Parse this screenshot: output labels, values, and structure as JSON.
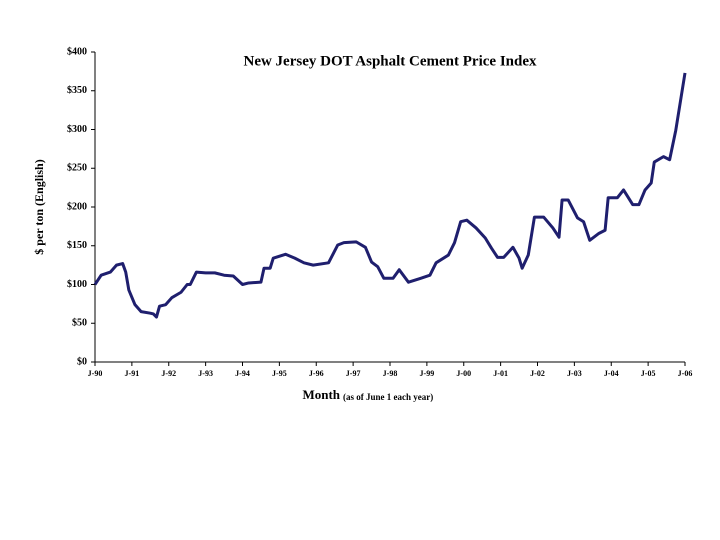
{
  "chart_data": {
    "type": "line",
    "title": "New Jersey DOT Asphalt Cement Price Index",
    "ylabel": "$ per ton (English)",
    "xlabel": "Month",
    "xlabel_note": "(as of June 1 each year)",
    "color": "#1f1f6e",
    "x": [
      0,
      2,
      5,
      7,
      9,
      10,
      11,
      13,
      15,
      18,
      19,
      20,
      21,
      23,
      25,
      28,
      30,
      31,
      33,
      36,
      39,
      42,
      45,
      48,
      50,
      54,
      55,
      57,
      58,
      62,
      65,
      68,
      71,
      76,
      79,
      81,
      85,
      88,
      90,
      92,
      94,
      97,
      99,
      102,
      106,
      109,
      111,
      115,
      117,
      119,
      121,
      124,
      127,
      129,
      131,
      133,
      136,
      138,
      139,
      141,
      143,
      146,
      149,
      151,
      152,
      154,
      157,
      159,
      161,
      164,
      166,
      167,
      170,
      172,
      175,
      177,
      179,
      181,
      182,
      185,
      187,
      189,
      192
    ],
    "values": [
      100,
      112,
      116,
      125,
      127,
      116,
      93,
      74,
      65,
      63,
      62,
      58,
      72,
      74,
      83,
      90,
      100,
      100,
      116,
      115,
      115,
      112,
      111,
      100,
      102,
      103,
      121,
      121,
      134,
      139,
      134,
      128,
      125,
      128,
      151,
      154,
      155,
      148,
      129,
      123,
      108,
      108,
      119,
      103,
      108,
      112,
      128,
      138,
      154,
      181,
      183,
      173,
      160,
      147,
      135,
      135,
      148,
      134,
      121,
      138,
      187,
      187,
      173,
      161,
      209,
      209,
      186,
      181,
      157,
      166,
      170,
      212,
      212,
      222,
      203,
      203,
      222,
      231,
      258,
      265,
      261,
      299,
      373
    ],
    "xlim": [
      0,
      192
    ],
    "xticks": [
      {
        "value": 0,
        "label": "J-90"
      },
      {
        "value": 12,
        "label": "J-91"
      },
      {
        "value": 24,
        "label": "J-92"
      },
      {
        "value": 36,
        "label": "J-93"
      },
      {
        "value": 48,
        "label": "J-94"
      },
      {
        "value": 60,
        "label": "J-95"
      },
      {
        "value": 72,
        "label": "J-96"
      },
      {
        "value": 84,
        "label": "J-97"
      },
      {
        "value": 96,
        "label": "J-98"
      },
      {
        "value": 108,
        "label": "J-99"
      },
      {
        "value": 120,
        "label": "J-00"
      },
      {
        "value": 132,
        "label": "J-01"
      },
      {
        "value": 144,
        "label": "J-02"
      },
      {
        "value": 156,
        "label": "J-03"
      },
      {
        "value": 168,
        "label": "J-04"
      },
      {
        "value": 180,
        "label": "J-05"
      },
      {
        "value": 192,
        "label": "J-06"
      }
    ],
    "ylim": [
      0,
      400
    ],
    "yticks": [
      {
        "value": 0,
        "label": "$0"
      },
      {
        "value": 50,
        "label": "$50"
      },
      {
        "value": 100,
        "label": "$100"
      },
      {
        "value": 150,
        "label": "$150"
      },
      {
        "value": 200,
        "label": "$200"
      },
      {
        "value": 250,
        "label": "$250"
      },
      {
        "value": 300,
        "label": "$300"
      },
      {
        "value": 350,
        "label": "$350"
      },
      {
        "value": 400,
        "label": "$400"
      }
    ],
    "grid": false
  }
}
